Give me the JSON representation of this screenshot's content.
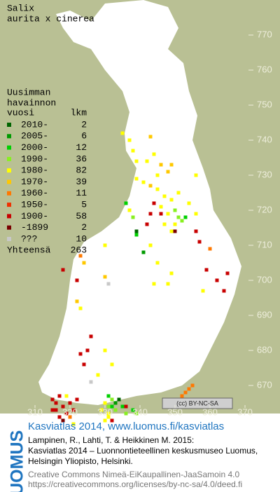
{
  "title": [
    "Salix",
    "aurita x cinerea"
  ],
  "legend": {
    "heading": [
      "Uusimman",
      "havainnon"
    ],
    "col_period": "vuosi",
    "col_count": "lkm",
    "entries": [
      {
        "label": "2010-",
        "count": 2,
        "color": "#006400"
      },
      {
        "label": "2005-",
        "count": 6,
        "color": "#009a00"
      },
      {
        "label": "2000-",
        "count": 12,
        "color": "#00d000"
      },
      {
        "label": "1990-",
        "count": 36,
        "color": "#88f020"
      },
      {
        "label": "1980-",
        "count": 82,
        "color": "#ffff00"
      },
      {
        "label": "1970-",
        "count": 39,
        "color": "#ffc800"
      },
      {
        "label": "1960-",
        "count": 11,
        "color": "#ff7800"
      },
      {
        "label": "1950-",
        "count": 5,
        "color": "#f03000"
      },
      {
        "label": "1900-",
        "count": 58,
        "color": "#c80000"
      },
      {
        "label": "-1899",
        "count": 2,
        "color": "#780000"
      },
      {
        "label": "???",
        "count": 10,
        "color": "#c8c8c8"
      }
    ],
    "total_label": "Yhteensä",
    "total": 263
  },
  "grid": {
    "x_ticks": [
      310,
      320,
      330,
      340,
      350,
      360,
      370
    ],
    "y_ticks": [
      770,
      760,
      750,
      740,
      730,
      720,
      710,
      700,
      690,
      680,
      670
    ]
  },
  "records": [
    [
      315,
      666,
      8
    ],
    [
      316,
      665,
      8
    ],
    [
      317,
      667,
      8
    ],
    [
      316,
      663,
      8
    ],
    [
      318,
      664,
      8
    ],
    [
      319,
      662,
      8
    ],
    [
      320,
      665,
      8
    ],
    [
      317,
      661,
      8
    ],
    [
      321,
      663,
      8
    ],
    [
      315,
      663,
      8
    ],
    [
      318,
      660,
      9
    ],
    [
      320,
      661,
      6
    ],
    [
      322,
      666,
      8
    ],
    [
      319,
      667,
      4
    ],
    [
      321,
      659,
      4
    ],
    [
      331,
      667,
      2
    ],
    [
      332,
      666,
      3
    ],
    [
      333,
      665,
      1
    ],
    [
      331,
      664,
      3
    ],
    [
      334,
      666,
      0
    ],
    [
      332,
      664,
      2
    ],
    [
      333,
      663,
      3
    ],
    [
      330,
      665,
      4
    ],
    [
      329,
      663,
      4
    ],
    [
      335,
      664,
      2
    ],
    [
      331,
      662,
      4
    ],
    [
      336,
      664,
      8
    ],
    [
      338,
      663,
      2
    ],
    [
      339,
      662,
      3
    ],
    [
      336,
      662,
      3
    ],
    [
      330,
      660,
      4
    ],
    [
      331,
      661,
      4
    ],
    [
      332,
      660,
      8
    ],
    [
      353,
      668,
      6
    ],
    [
      354,
      669,
      6
    ],
    [
      352,
      667,
      6
    ],
    [
      355,
      670,
      6
    ],
    [
      351,
      666,
      10
    ],
    [
      338,
      737,
      4
    ],
    [
      339,
      734,
      4
    ],
    [
      342,
      734,
      4
    ],
    [
      344,
      736,
      4
    ],
    [
      345,
      730,
      4
    ],
    [
      346,
      733,
      5
    ],
    [
      348,
      731,
      5
    ],
    [
      339,
      729,
      4
    ],
    [
      341,
      728,
      4
    ],
    [
      343,
      727,
      5
    ],
    [
      345,
      726,
      4
    ],
    [
      347,
      724,
      4
    ],
    [
      349,
      723,
      4
    ],
    [
      351,
      725,
      4
    ],
    [
      346,
      721,
      4
    ],
    [
      348,
      719,
      4
    ],
    [
      350,
      720,
      3
    ],
    [
      351,
      718,
      3
    ],
    [
      352,
      717,
      3
    ],
    [
      353,
      718,
      2
    ],
    [
      350,
      716,
      4
    ],
    [
      347,
      716,
      4
    ],
    [
      349,
      714,
      4
    ],
    [
      344,
      722,
      8
    ],
    [
      343,
      719,
      8
    ],
    [
      346,
      719,
      8
    ],
    [
      342,
      716,
      8
    ],
    [
      339,
      713,
      2
    ],
    [
      338,
      718,
      3
    ],
    [
      337,
      720,
      4
    ],
    [
      336,
      722,
      2
    ],
    [
      337,
      740,
      4
    ],
    [
      335,
      742,
      4
    ],
    [
      343,
      741,
      5
    ],
    [
      349,
      733,
      5
    ],
    [
      354,
      722,
      4
    ],
    [
      356,
      719,
      4
    ],
    [
      356,
      730,
      4
    ],
    [
      350,
      714,
      9
    ],
    [
      356,
      714,
      8
    ],
    [
      339,
      714,
      0
    ],
    [
      357,
      711,
      8
    ],
    [
      359,
      703,
      8
    ],
    [
      362,
      700,
      8
    ],
    [
      365,
      702,
      8
    ],
    [
      364,
      697,
      8
    ],
    [
      360,
      709,
      6
    ],
    [
      358,
      697,
      4
    ],
    [
      323,
      707,
      6
    ],
    [
      324,
      705,
      5
    ],
    [
      322,
      700,
      8
    ],
    [
      318,
      703,
      8
    ],
    [
      330,
      701,
      5
    ],
    [
      331,
      699,
      10
    ],
    [
      322,
      694,
      5
    ],
    [
      323,
      692,
      4
    ],
    [
      326,
      684,
      8
    ],
    [
      325,
      680,
      8
    ],
    [
      323,
      679,
      8
    ],
    [
      324,
      676,
      8
    ],
    [
      328,
      673,
      4
    ],
    [
      326,
      671,
      10
    ],
    [
      330,
      680,
      4
    ],
    [
      332,
      676,
      4
    ],
    [
      330,
      710,
      4
    ],
    [
      343,
      710,
      4
    ],
    [
      341,
      708,
      1
    ],
    [
      345,
      705,
      4
    ],
    [
      349,
      702,
      4
    ],
    [
      348,
      699,
      4
    ],
    [
      344,
      699,
      4
    ]
  ],
  "license_badge": "(cc) BY-NC-SA",
  "footer": {
    "logo": "LUOMUS",
    "link": "Kasviatlas 2014, www.luomus.fi/kasviatlas",
    "citation": [
      "Lampinen, R., Lahti, T. & Heikkinen M. 2015:",
      "Kasviatlas 2014 – Luonnontieteellinen keskusmuseo Luomus,",
      "Helsingin Yliopisto, Helsinki."
    ],
    "license": [
      "Creative Commons Nimeä-EiKaupallinen-JaaSamoin 4.0",
      "https://creativecommons.org/licenses/by-nc-sa/4.0/deed.fi"
    ]
  }
}
